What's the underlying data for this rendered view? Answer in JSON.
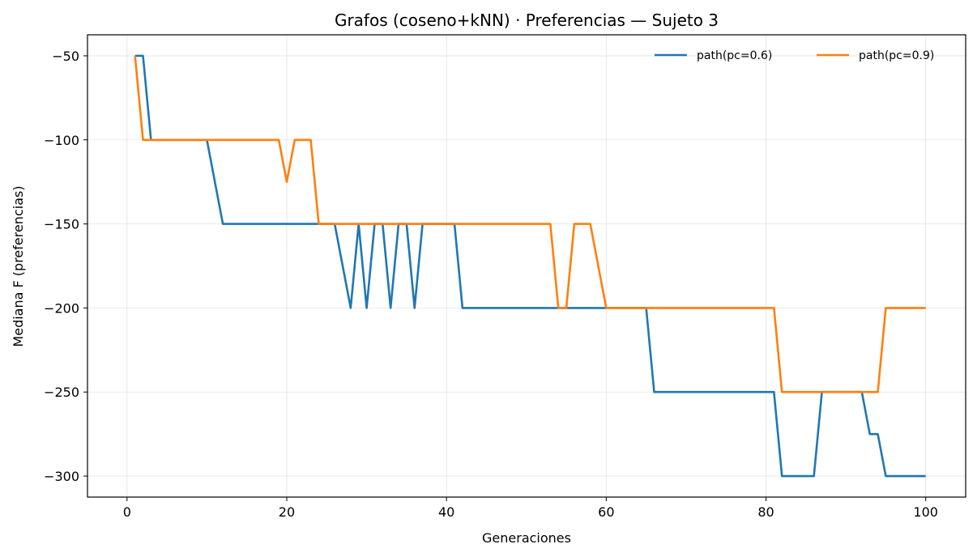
{
  "chart_data": {
    "type": "line",
    "title": "Grafos (coseno+kNN) · Preferencias — Sujeto 3",
    "xlabel": "Generaciones",
    "ylabel": "Mediana F (preferencias)",
    "xlim": [
      -4.95,
      105
    ],
    "ylim": [
      -312.5,
      -37.5
    ],
    "xticks": [
      0,
      20,
      40,
      60,
      80,
      100
    ],
    "yticks": [
      -50,
      -100,
      -150,
      -200,
      -250,
      -300
    ],
    "xtick_labels": [
      "0",
      "20",
      "40",
      "60",
      "80",
      "100"
    ],
    "ytick_labels": [
      "−50",
      "−100",
      "−150",
      "−200",
      "−250",
      "−300"
    ],
    "grid": true,
    "legend_position": "upper-right",
    "series": [
      {
        "name": "path(pc=0.6)",
        "color": "#1f77b4",
        "x": [
          1,
          2,
          3,
          10,
          12,
          25,
          26,
          28,
          29,
          30,
          31,
          32,
          33,
          34,
          35,
          36,
          37,
          41,
          42,
          65,
          66,
          81,
          82,
          86,
          87,
          92,
          93,
          94,
          95,
          100
        ],
        "y": [
          -50,
          -50,
          -100,
          -100,
          -150,
          -150,
          -150,
          -200,
          -150,
          -200,
          -150,
          -150,
          -200,
          -150,
          -150,
          -200,
          -150,
          -150,
          -200,
          -200,
          -250,
          -250,
          -300,
          -300,
          -250,
          -250,
          -275,
          -275,
          -300,
          -300
        ]
      },
      {
        "name": "path(pc=0.9)",
        "color": "#ff7f0e",
        "x": [
          1,
          2,
          19,
          20,
          21,
          23,
          24,
          53,
          54,
          55,
          56,
          58,
          60,
          81,
          82,
          94,
          95,
          100
        ],
        "y": [
          -50,
          -100,
          -100,
          -125,
          -100,
          -100,
          -150,
          -150,
          -200,
          -200,
          -150,
          -150,
          -200,
          -200,
          -250,
          -250,
          -200,
          -200
        ]
      }
    ]
  }
}
